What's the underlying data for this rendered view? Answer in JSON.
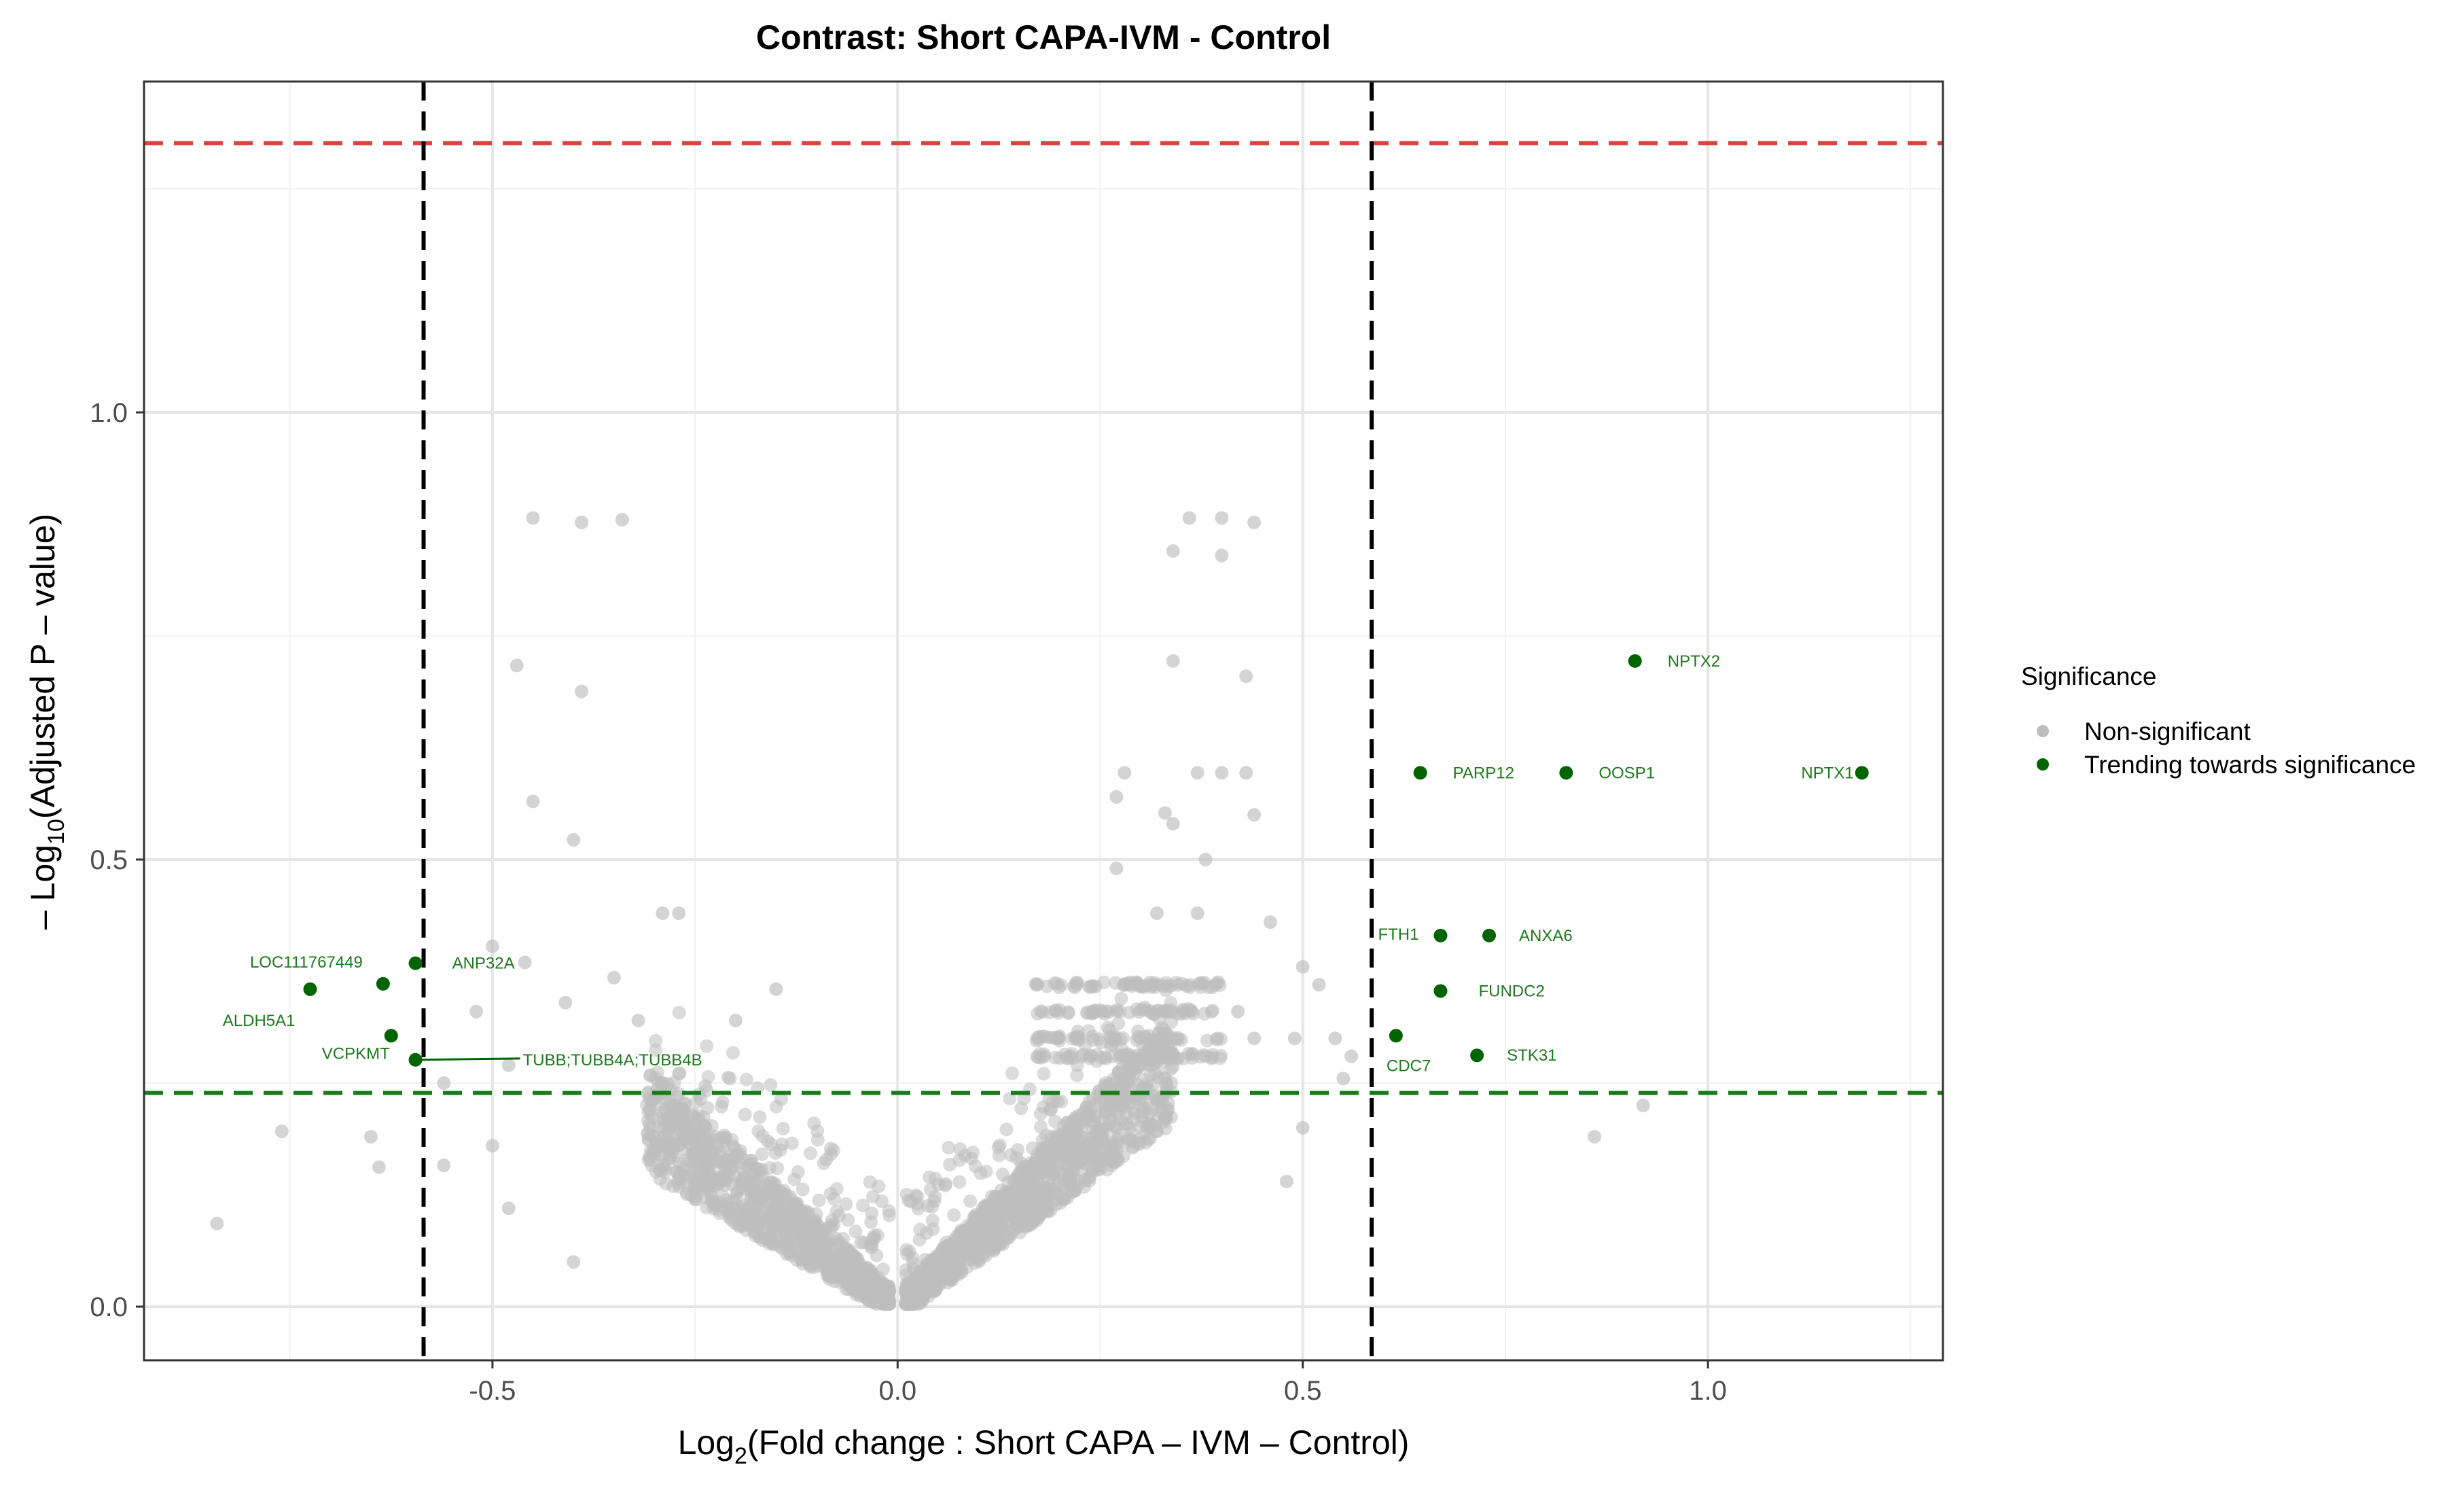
{
  "chart_data": {
    "type": "scatter",
    "title": "Contrast: Short CAPA-IVM - Control",
    "xlabel": {
      "pre": "Log",
      "sub": "2",
      "post": "(Fold change :  Short CAPA – IVM –  Control)"
    },
    "ylabel": {
      "pre": "– Log",
      "sub": "10",
      "post": "(Adjusted P – value)"
    },
    "xlim": [
      -0.93,
      1.29
    ],
    "ylim": [
      -0.06,
      1.37
    ],
    "x_ticks": [
      {
        "value": -0.5,
        "label": "-0.5"
      },
      {
        "value": 0.0,
        "label": "0.0"
      },
      {
        "value": 0.5,
        "label": "0.5"
      },
      {
        "value": 1.0,
        "label": "1.0"
      }
    ],
    "y_ticks": [
      {
        "value": 0.0,
        "label": "0.0"
      },
      {
        "value": 0.5,
        "label": "0.5"
      },
      {
        "value": 1.0,
        "label": "1.0"
      }
    ],
    "grid": true,
    "thresholds": {
      "fold_change_lines": [
        -0.585,
        0.585
      ],
      "significance_line": 1.301,
      "trending_line": 0.239
    },
    "legend": {
      "title": "Significance",
      "position": "right",
      "entries": [
        {
          "label": "Non-significant",
          "color": "#bdbdbd"
        },
        {
          "label": "Trending towards significance",
          "color": "#006400"
        }
      ]
    },
    "colors": {
      "non_significant": "#bdbdbd",
      "trending": "#006400",
      "label_text": "#1f7a1f",
      "significance_line": "#d9423d",
      "trending_line": "#1a7a1a",
      "fold_change_line": "#000000"
    },
    "series": [
      {
        "name": "Trending towards significance",
        "points": [
          {
            "x": 1.19,
            "y": 0.597,
            "label": "NPTX1"
          },
          {
            "x": 0.91,
            "y": 0.722,
            "label": "NPTX2"
          },
          {
            "x": 0.645,
            "y": 0.597,
            "label": "PARP12"
          },
          {
            "x": 0.825,
            "y": 0.597,
            "label": "OOSP1"
          },
          {
            "x": 0.67,
            "y": 0.415,
            "label": "FTH1"
          },
          {
            "x": 0.73,
            "y": 0.415,
            "label": "ANXA6"
          },
          {
            "x": 0.67,
            "y": 0.353,
            "label": "FUNDC2"
          },
          {
            "x": 0.615,
            "y": 0.303,
            "label": "CDC7"
          },
          {
            "x": 0.715,
            "y": 0.281,
            "label": "STK31"
          },
          {
            "x": -0.595,
            "y": 0.384,
            "label": "ANP32A"
          },
          {
            "x": -0.635,
            "y": 0.361,
            "label": "LOC111767449"
          },
          {
            "x": -0.725,
            "y": 0.355,
            "label": "ALDH5A1"
          },
          {
            "x": -0.625,
            "y": 0.303,
            "label": "VCPKMT"
          },
          {
            "x": -0.595,
            "y": 0.276,
            "label": "TUBB;TUBB4A;TUBB4B"
          }
        ]
      },
      {
        "name": "Non-significant",
        "points": [
          {
            "x": -0.45,
            "y": 0.882
          },
          {
            "x": -0.39,
            "y": 0.877
          },
          {
            "x": -0.34,
            "y": 0.88
          },
          {
            "x": -0.47,
            "y": 0.717
          },
          {
            "x": -0.39,
            "y": 0.688
          },
          {
            "x": -0.45,
            "y": 0.565
          },
          {
            "x": -0.4,
            "y": 0.522
          },
          {
            "x": -0.29,
            "y": 0.44
          },
          {
            "x": -0.27,
            "y": 0.44
          },
          {
            "x": -0.46,
            "y": 0.385
          },
          {
            "x": -0.35,
            "y": 0.368
          },
          {
            "x": -0.5,
            "y": 0.403
          },
          {
            "x": -0.52,
            "y": 0.33
          },
          {
            "x": -0.41,
            "y": 0.34
          },
          {
            "x": -0.32,
            "y": 0.32
          },
          {
            "x": -0.2,
            "y": 0.32
          },
          {
            "x": -0.15,
            "y": 0.355
          },
          {
            "x": -0.48,
            "y": 0.27
          },
          {
            "x": -0.56,
            "y": 0.25
          },
          {
            "x": -0.76,
            "y": 0.196
          },
          {
            "x": -0.65,
            "y": 0.19
          },
          {
            "x": -0.64,
            "y": 0.156
          },
          {
            "x": -0.56,
            "y": 0.158
          },
          {
            "x": -0.5,
            "y": 0.18
          },
          {
            "x": -0.84,
            "y": 0.093
          },
          {
            "x": -0.48,
            "y": 0.11
          },
          {
            "x": -0.4,
            "y": 0.05
          },
          {
            "x": 0.34,
            "y": 0.845
          },
          {
            "x": 0.36,
            "y": 0.882
          },
          {
            "x": 0.4,
            "y": 0.882
          },
          {
            "x": 0.44,
            "y": 0.877
          },
          {
            "x": 0.4,
            "y": 0.84
          },
          {
            "x": 0.34,
            "y": 0.722
          },
          {
            "x": 0.43,
            "y": 0.705
          },
          {
            "x": 0.28,
            "y": 0.597
          },
          {
            "x": 0.37,
            "y": 0.597
          },
          {
            "x": 0.4,
            "y": 0.597
          },
          {
            "x": 0.43,
            "y": 0.597
          },
          {
            "x": 0.33,
            "y": 0.552
          },
          {
            "x": 0.27,
            "y": 0.57
          },
          {
            "x": 0.34,
            "y": 0.54
          },
          {
            "x": 0.38,
            "y": 0.5
          },
          {
            "x": 0.44,
            "y": 0.55
          },
          {
            "x": 0.27,
            "y": 0.49
          },
          {
            "x": 0.32,
            "y": 0.44
          },
          {
            "x": 0.37,
            "y": 0.44
          },
          {
            "x": 0.46,
            "y": 0.43
          },
          {
            "x": 0.5,
            "y": 0.38
          },
          {
            "x": 0.52,
            "y": 0.36
          },
          {
            "x": 0.49,
            "y": 0.3
          },
          {
            "x": 0.54,
            "y": 0.3
          },
          {
            "x": 0.56,
            "y": 0.28
          },
          {
            "x": 0.55,
            "y": 0.255
          },
          {
            "x": 0.5,
            "y": 0.2
          },
          {
            "x": 0.48,
            "y": 0.14
          },
          {
            "x": 0.86,
            "y": 0.19
          },
          {
            "x": 0.92,
            "y": 0.225
          },
          {
            "x": 0.44,
            "y": 0.3
          },
          {
            "x": 0.42,
            "y": 0.33
          }
        ]
      }
    ],
    "cloud": {
      "description_free_params": true,
      "count": 2200,
      "seed": 7
    }
  }
}
